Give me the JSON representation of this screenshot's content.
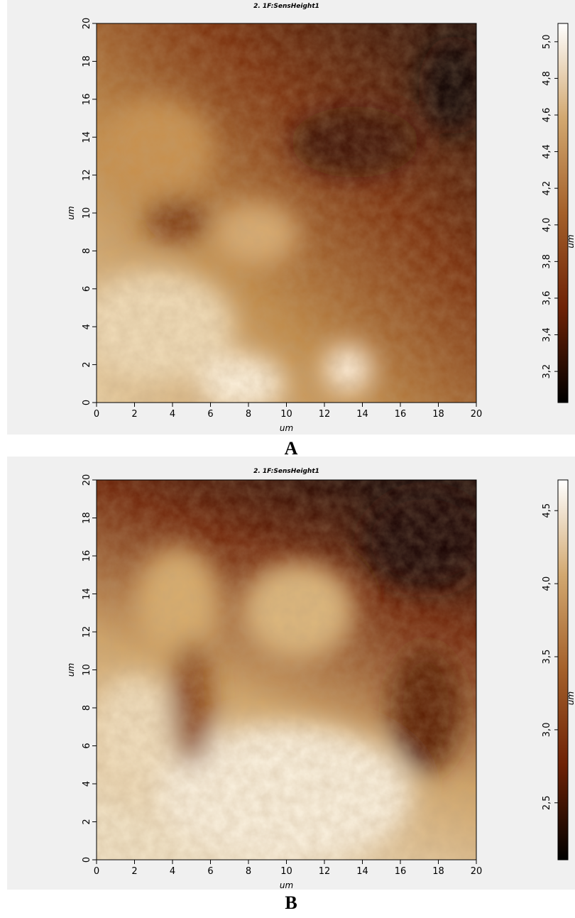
{
  "chart_data": [
    {
      "type": "heatmap",
      "title": "2. 1F:SensHeight1",
      "panel_label": "A",
      "x_label": "um",
      "y_label": "um",
      "colorbar_label": "um",
      "xlim": [
        0,
        20
      ],
      "xticks": [
        0,
        2,
        4,
        6,
        8,
        10,
        12,
        14,
        16,
        18,
        20
      ],
      "ylim": [
        0,
        20
      ],
      "yticks": [
        0,
        2,
        4,
        6,
        8,
        10,
        12,
        14,
        16,
        18,
        20
      ],
      "clim": [
        3.03,
        5.1
      ],
      "cticks": [
        {
          "value": 3.2,
          "label": "3,2"
        },
        {
          "value": 3.4,
          "label": "3,4"
        },
        {
          "value": 3.6,
          "label": "3,6"
        },
        {
          "value": 3.8,
          "label": "3,8"
        },
        {
          "value": 4.0,
          "label": "4,0"
        },
        {
          "value": 4.2,
          "label": "4,2"
        },
        {
          "value": 4.4,
          "label": "4,4"
        },
        {
          "value": 4.6,
          "label": "4,6"
        },
        {
          "value": 4.8,
          "label": "4,8"
        },
        {
          "value": 5.0,
          "label": "5,0"
        }
      ],
      "colorscale": [
        "#000000",
        "#6e2206",
        "#a4602a",
        "#d2a870",
        "#ffffff"
      ]
    },
    {
      "type": "heatmap",
      "title": "2. 1F:SensHeight1",
      "panel_label": "B",
      "x_label": "um",
      "y_label": "um",
      "colorbar_label": "um",
      "xlim": [
        0,
        20
      ],
      "xticks": [
        0,
        2,
        4,
        6,
        8,
        10,
        12,
        14,
        16,
        18,
        20
      ],
      "ylim": [
        0,
        20
      ],
      "yticks": [
        0,
        2,
        4,
        6,
        8,
        10,
        12,
        14,
        16,
        18,
        20
      ],
      "clim": [
        2.11,
        4.71
      ],
      "cticks": [
        {
          "value": 2.5,
          "label": "2,5"
        },
        {
          "value": 3.0,
          "label": "3,0"
        },
        {
          "value": 3.5,
          "label": "3,5"
        },
        {
          "value": 4.0,
          "label": "4,0"
        },
        {
          "value": 4.5,
          "label": "4,5"
        }
      ],
      "colorscale": [
        "#000000",
        "#6e2206",
        "#a4602a",
        "#d2a870",
        "#ffffff"
      ]
    }
  ]
}
